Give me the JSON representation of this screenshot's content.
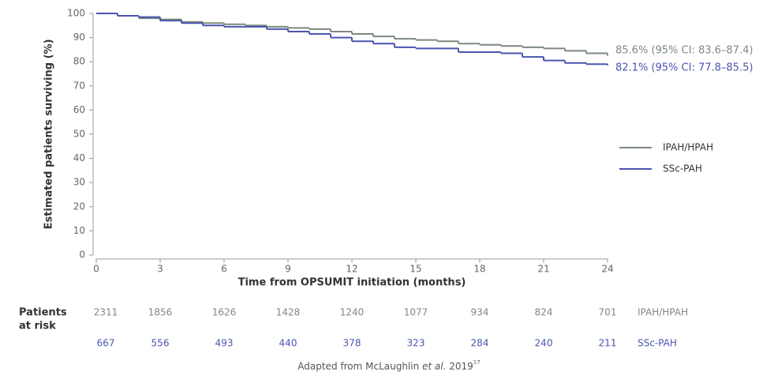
{
  "chart_data": {
    "type": "step",
    "xlabel": "Time from OPSUMIT initiation (months)",
    "ylabel": "Estimated patients surviving (%)",
    "x": [
      0,
      1,
      2,
      3,
      4,
      5,
      6,
      7,
      8,
      9,
      10,
      11,
      12,
      13,
      14,
      15,
      16,
      17,
      18,
      19,
      20,
      21,
      22,
      23,
      24
    ],
    "series": [
      {
        "name": "IPAH/HPAH",
        "color": "#7d8a7d",
        "annotation": "85.6% (95% CI: 83.6–87.4)",
        "values": [
          100,
          99,
          98,
          97.5,
          96.5,
          96,
          95.5,
          95,
          94.5,
          94,
          93.5,
          92.5,
          91.5,
          90.5,
          89.5,
          89,
          88.5,
          87.5,
          87,
          86.5,
          86,
          85.5,
          84.5,
          83.5,
          82.5
        ]
      },
      {
        "name": "SSc-PAH",
        "color": "#4a55b0",
        "annotation": "82.1% (95% CI: 77.8–85.5)",
        "values": [
          100,
          99,
          98.5,
          97,
          96,
          95,
          94.5,
          94.5,
          93.5,
          92.5,
          91.5,
          90,
          88.5,
          87.5,
          86,
          85.5,
          85.5,
          84,
          84,
          83.5,
          82,
          80.5,
          79.5,
          79,
          78.5
        ]
      }
    ],
    "xlim": [
      0,
      24
    ],
    "xticks": [
      0,
      3,
      6,
      9,
      12,
      15,
      18,
      21,
      24
    ],
    "ylim": [
      0,
      100
    ],
    "yticks": [
      0,
      10,
      20,
      30,
      40,
      50,
      60,
      70,
      80,
      90,
      100
    ],
    "legend": "right",
    "risk_table": {
      "label": [
        "Patients",
        "at risk"
      ],
      "rows": [
        {
          "name": "IPAH/HPAH",
          "color": "#7d8a7d",
          "values": [
            2311,
            1856,
            1626,
            1428,
            1240,
            1077,
            934,
            824,
            701
          ]
        },
        {
          "name": "SSc-PAH",
          "color": "#4a55b0",
          "values": [
            667,
            556,
            493,
            440,
            378,
            323,
            284,
            240,
            211
          ]
        }
      ]
    },
    "footer": {
      "before": "Adapted from McLaughlin ",
      "italic": "et al.",
      "after": " 2019",
      "sup": "17"
    }
  }
}
